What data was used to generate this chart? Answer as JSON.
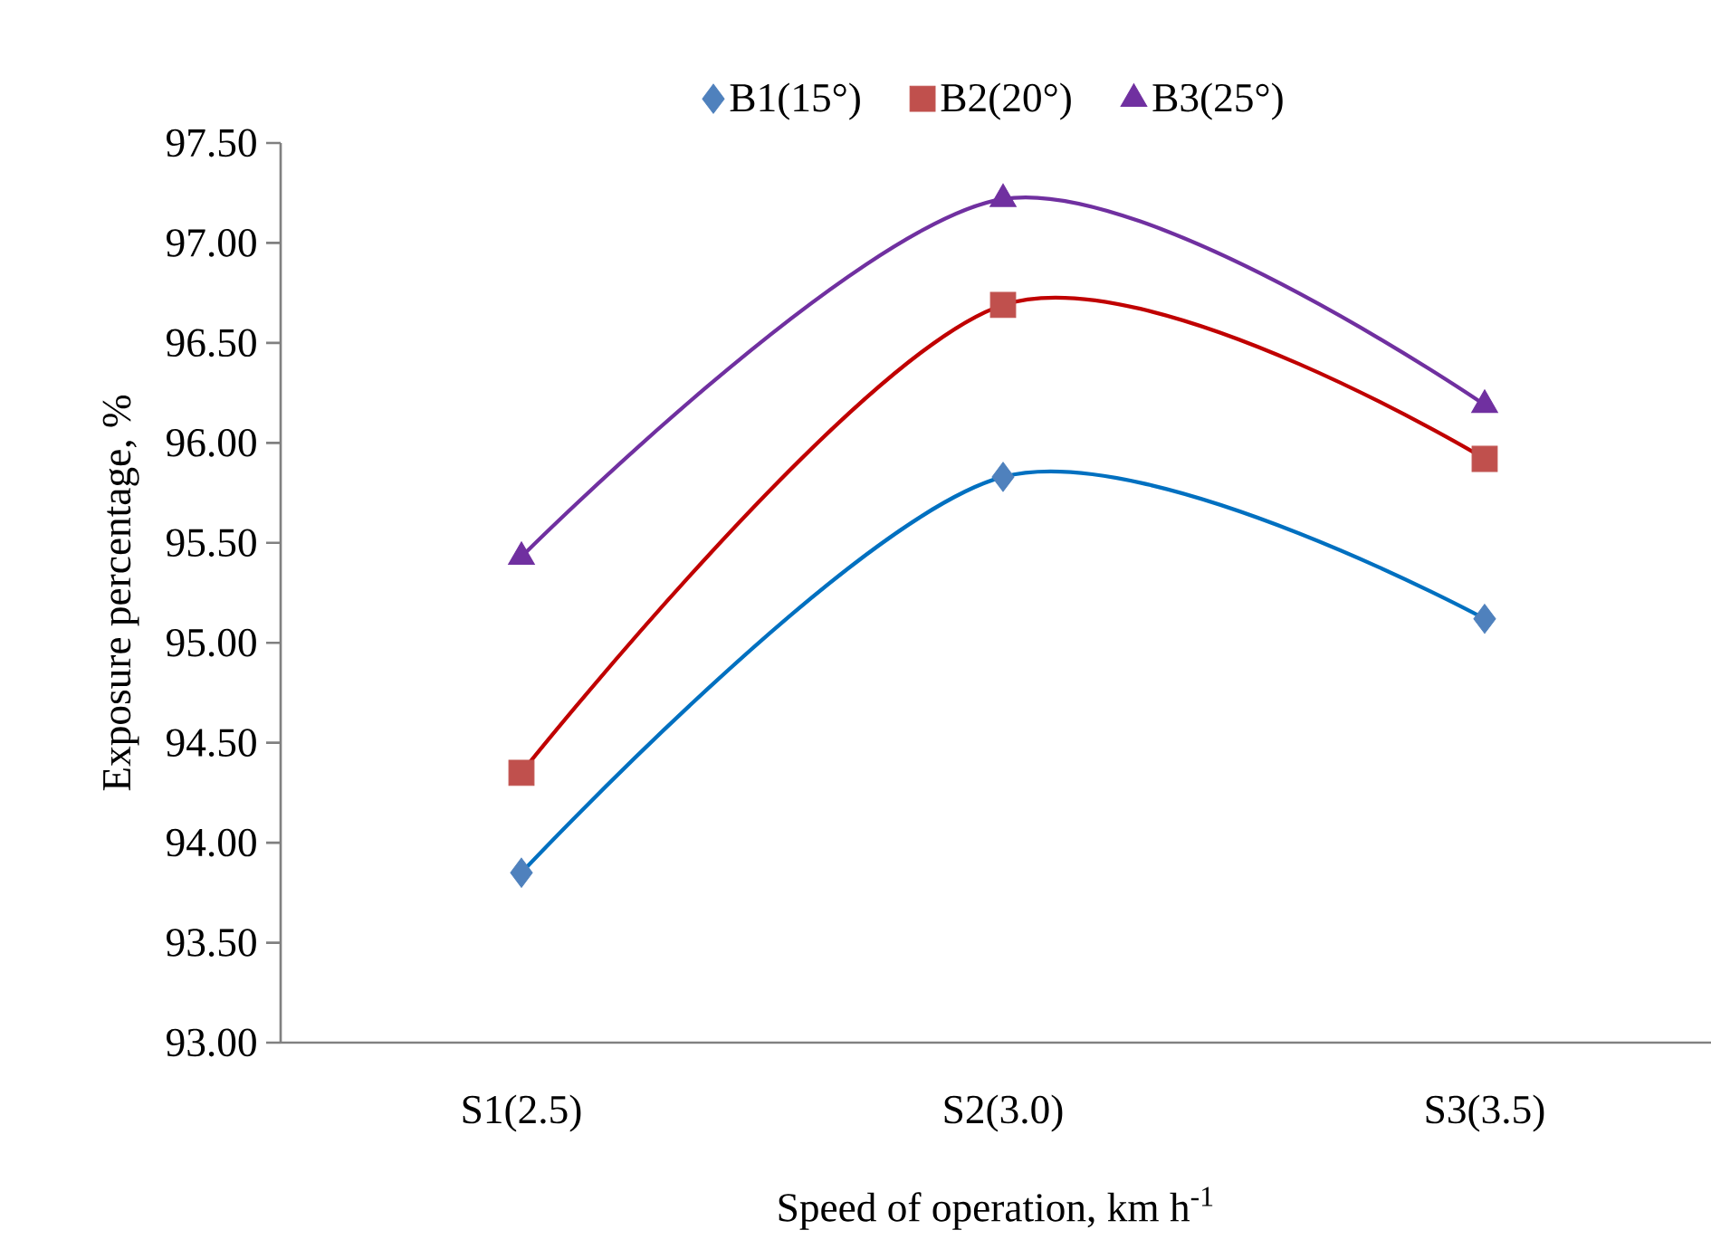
{
  "chart_data": {
    "type": "scatter",
    "xlabel": "Speed of operation, km h$^{-1}$",
    "ylabel": "Exposure percentage, %",
    "categories": [
      "S1(2.5)",
      "S2(3.0)",
      "S3(3.5)"
    ],
    "series": [
      {
        "name": "B1(15°)",
        "marker": "diamond",
        "color": "#4f81bd",
        "values": [
          93.85,
          95.83,
          95.12
        ]
      },
      {
        "name": "B2(20°)",
        "marker": "square",
        "color": "#c0504d",
        "values": [
          94.35,
          96.69,
          95.92
        ]
      },
      {
        "name": "B3(25°)",
        "marker": "triangle",
        "color": "#7030a0",
        "values": [
          95.43,
          97.22,
          96.19
        ]
      },
      {
        "type": "line",
        "marker": "none",
        "line_style": "solid",
        "color": "#0070c0",
        "values": [
          93.85,
          95.83,
          95.12
        ]
      },
      {
        "type": "line",
        "marker": "none",
        "line_style": "solid",
        "color": "#c00000",
        "values": [
          94.35,
          96.69,
          95.92
        ]
      },
      {
        "type": "line",
        "marker": "none",
        "line_style": "solid",
        "color": "#7030a0",
        "values": [
          95.43,
          97.22,
          96.19
        ]
      }
    ],
    "ylim": [
      93,
      97.5
    ],
    "yticks": [
      {
        "value": 93,
        "label": "93.00"
      },
      {
        "value": 93.5,
        "label": "93.50"
      },
      {
        "value": 94,
        "label": "94.00"
      },
      {
        "value": 94.5,
        "label": "94.50"
      },
      {
        "value": 95,
        "label": "95.00"
      },
      {
        "value": 95.5,
        "label": "95.50"
      },
      {
        "value": 96,
        "label": "96.00"
      },
      {
        "value": 96.5,
        "label": "96.50"
      },
      {
        "value": 97,
        "label": "97.00"
      },
      {
        "value": 97.5,
        "label": "97.50"
      }
    ],
    "grid": false,
    "legend": "top"
  }
}
